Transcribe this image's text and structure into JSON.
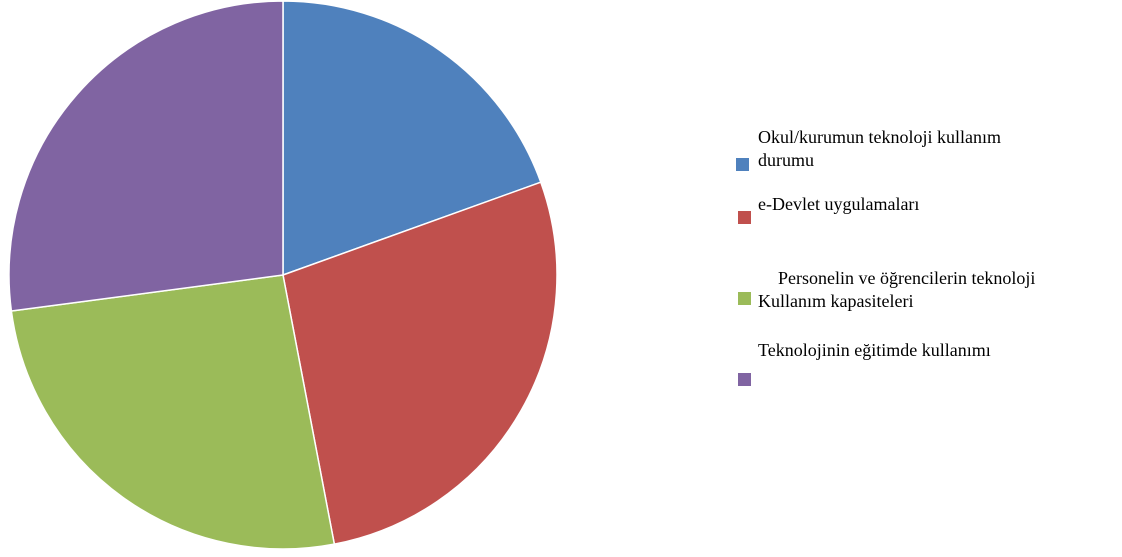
{
  "chart_data": {
    "type": "pie",
    "categories": [
      "Okul/kurumun teknoloji kullanım\ndurumu",
      "e-Devlet uygulamaları",
      "Personelin ve öğrencilerin teknoloji\nKullanım kapasiteleri",
      "Teknolojinin eğitimde kullanımı"
    ],
    "values": [
      19.5,
      27.5,
      25.9,
      27.1
    ],
    "colors": [
      "#4f81bd",
      "#c0504d",
      "#9bbb59",
      "#8064a2"
    ],
    "legend": "right"
  }
}
